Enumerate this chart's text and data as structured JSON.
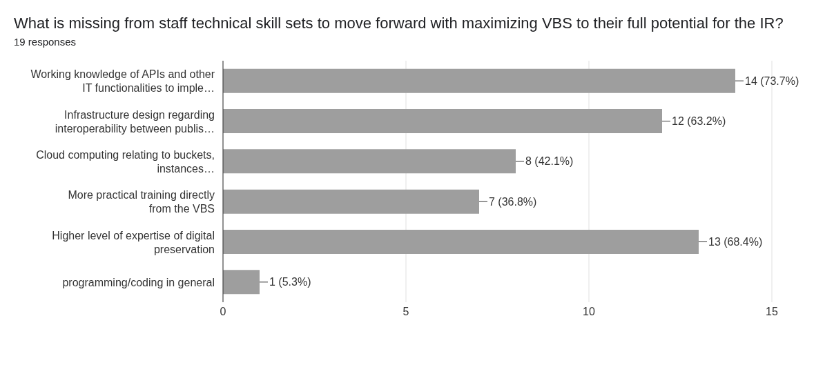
{
  "chart_data": {
    "type": "bar",
    "orientation": "horizontal",
    "title": "What is missing from staff technical skill sets to move forward with maximizing VBS to their full potential for the IR?",
    "subtitle": "19 responses",
    "categories": [
      "Working knowledge of APIs and other IT functionalities to imple…",
      "Infrastructure design regarding interoperability between publis…",
      "Cloud computing relating to buckets, instances…",
      "More practical training directly from the VBS",
      "Higher level of expertise of digital preservation",
      "programming/coding in general"
    ],
    "values": [
      14,
      12,
      8,
      7,
      13,
      1
    ],
    "value_labels": [
      "14 (73.7%)",
      "12 (63.2%)",
      "8 (42.1%)",
      "7 (36.8%)",
      "13 (68.4%)",
      "1 (5.3%)"
    ],
    "color": "#9e9e9e",
    "xlim": [
      0,
      15
    ],
    "xticks": [
      0,
      5,
      10,
      15
    ],
    "grid": "x"
  }
}
